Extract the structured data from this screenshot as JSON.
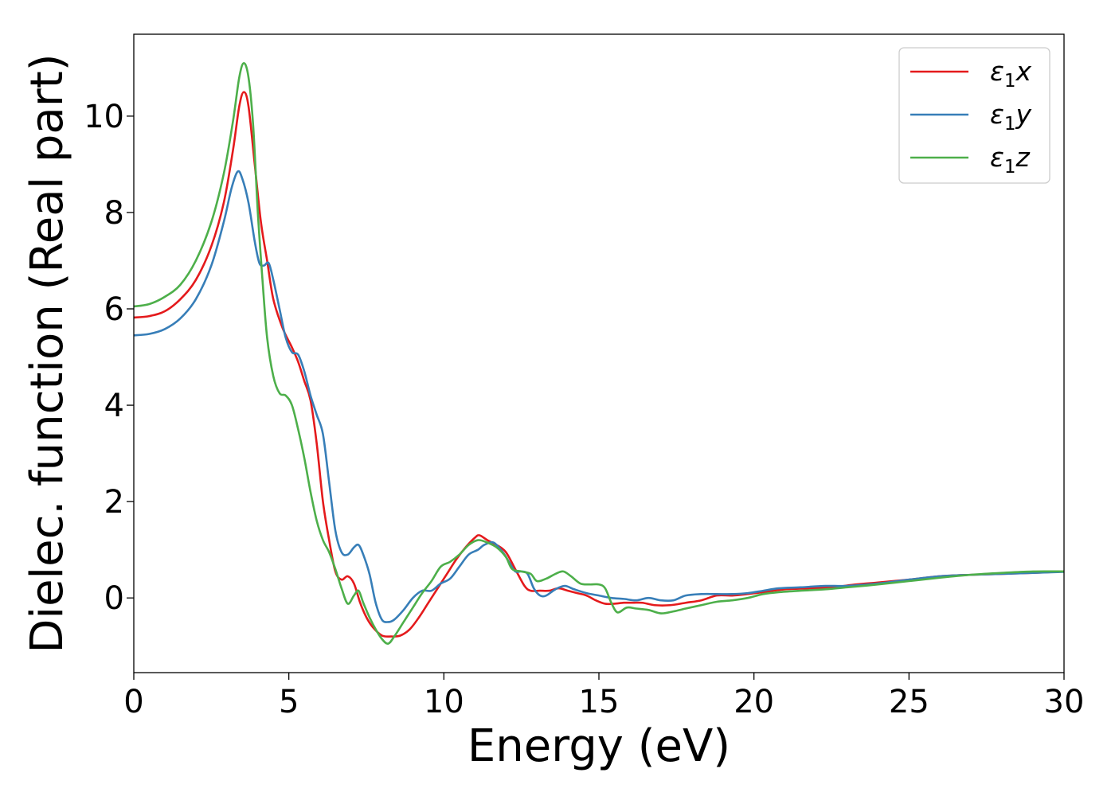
{
  "chart_data": {
    "type": "line",
    "xlabel": "Energy (eV)",
    "ylabel": "Dielec. function (Real part)",
    "xlim": [
      0,
      30
    ],
    "ylim": [
      -1.55,
      11.7
    ],
    "xticks": [
      0,
      5,
      10,
      15,
      20,
      25,
      30
    ],
    "yticks": [
      0,
      2,
      4,
      6,
      8,
      10
    ],
    "grid": false,
    "legend_position": "top-right",
    "series": [
      {
        "name": "ε₁x",
        "legend_base": "ε",
        "legend_sub": "1",
        "legend_suffix": "x",
        "color": "#e41a1c",
        "points": [
          [
            0,
            5.82
          ],
          [
            0.5,
            5.85
          ],
          [
            1.0,
            5.95
          ],
          [
            1.5,
            6.2
          ],
          [
            2.0,
            6.6
          ],
          [
            2.5,
            7.3
          ],
          [
            2.9,
            8.2
          ],
          [
            3.2,
            9.3
          ],
          [
            3.4,
            10.2
          ],
          [
            3.55,
            10.5
          ],
          [
            3.7,
            10.2
          ],
          [
            3.9,
            9.0
          ],
          [
            4.1,
            7.8
          ],
          [
            4.3,
            7.0
          ],
          [
            4.5,
            6.2
          ],
          [
            4.8,
            5.6
          ],
          [
            5.1,
            5.2
          ],
          [
            5.3,
            4.9
          ],
          [
            5.5,
            4.5
          ],
          [
            5.7,
            4.1
          ],
          [
            5.9,
            3.2
          ],
          [
            6.1,
            2.0
          ],
          [
            6.3,
            1.2
          ],
          [
            6.5,
            0.55
          ],
          [
            6.7,
            0.38
          ],
          [
            6.9,
            0.45
          ],
          [
            7.1,
            0.3
          ],
          [
            7.3,
            -0.1
          ],
          [
            7.5,
            -0.4
          ],
          [
            7.7,
            -0.6
          ],
          [
            8.0,
            -0.78
          ],
          [
            8.3,
            -0.8
          ],
          [
            8.6,
            -0.78
          ],
          [
            8.9,
            -0.65
          ],
          [
            9.2,
            -0.4
          ],
          [
            9.5,
            -0.1
          ],
          [
            9.8,
            0.2
          ],
          [
            10.1,
            0.5
          ],
          [
            10.4,
            0.8
          ],
          [
            10.7,
            1.05
          ],
          [
            11.0,
            1.25
          ],
          [
            11.15,
            1.3
          ],
          [
            11.4,
            1.2
          ],
          [
            11.7,
            1.1
          ],
          [
            12.0,
            0.95
          ],
          [
            12.3,
            0.6
          ],
          [
            12.6,
            0.25
          ],
          [
            12.8,
            0.15
          ],
          [
            13.1,
            0.15
          ],
          [
            13.4,
            0.15
          ],
          [
            13.7,
            0.2
          ],
          [
            14.0,
            0.15
          ],
          [
            14.3,
            0.1
          ],
          [
            14.6,
            0.05
          ],
          [
            14.9,
            -0.05
          ],
          [
            15.2,
            -0.12
          ],
          [
            15.5,
            -0.12
          ],
          [
            15.8,
            -0.1
          ],
          [
            16.1,
            -0.1
          ],
          [
            16.4,
            -0.1
          ],
          [
            16.8,
            -0.15
          ],
          [
            17.3,
            -0.15
          ],
          [
            17.8,
            -0.1
          ],
          [
            18.3,
            -0.05
          ],
          [
            18.8,
            0.05
          ],
          [
            19.3,
            0.05
          ],
          [
            19.8,
            0.08
          ],
          [
            20.3,
            0.12
          ],
          [
            21.0,
            0.18
          ],
          [
            21.8,
            0.2
          ],
          [
            22.5,
            0.22
          ],
          [
            23.3,
            0.28
          ],
          [
            24.0,
            0.32
          ],
          [
            25.0,
            0.38
          ],
          [
            26.0,
            0.45
          ],
          [
            27.0,
            0.48
          ],
          [
            28.0,
            0.5
          ],
          [
            29.0,
            0.52
          ],
          [
            30.0,
            0.55
          ]
        ]
      },
      {
        "name": "ε₁y",
        "legend_base": "ε",
        "legend_sub": "1",
        "legend_suffix": "y",
        "color": "#377eb8",
        "points": [
          [
            0,
            5.45
          ],
          [
            0.5,
            5.48
          ],
          [
            1.0,
            5.58
          ],
          [
            1.5,
            5.8
          ],
          [
            2.0,
            6.2
          ],
          [
            2.5,
            6.9
          ],
          [
            2.9,
            7.8
          ],
          [
            3.15,
            8.5
          ],
          [
            3.35,
            8.85
          ],
          [
            3.5,
            8.7
          ],
          [
            3.7,
            8.2
          ],
          [
            3.9,
            7.4
          ],
          [
            4.05,
            6.95
          ],
          [
            4.2,
            6.9
          ],
          [
            4.35,
            6.95
          ],
          [
            4.5,
            6.6
          ],
          [
            4.7,
            6.0
          ],
          [
            4.9,
            5.4
          ],
          [
            5.1,
            5.1
          ],
          [
            5.3,
            5.05
          ],
          [
            5.5,
            4.7
          ],
          [
            5.7,
            4.2
          ],
          [
            5.9,
            3.8
          ],
          [
            6.1,
            3.4
          ],
          [
            6.3,
            2.4
          ],
          [
            6.5,
            1.4
          ],
          [
            6.7,
            0.95
          ],
          [
            6.9,
            0.9
          ],
          [
            7.1,
            1.05
          ],
          [
            7.25,
            1.1
          ],
          [
            7.4,
            0.9
          ],
          [
            7.6,
            0.5
          ],
          [
            7.8,
            -0.1
          ],
          [
            8.0,
            -0.45
          ],
          [
            8.2,
            -0.5
          ],
          [
            8.4,
            -0.45
          ],
          [
            8.7,
            -0.25
          ],
          [
            9.0,
            0.0
          ],
          [
            9.3,
            0.15
          ],
          [
            9.6,
            0.15
          ],
          [
            9.9,
            0.3
          ],
          [
            10.2,
            0.4
          ],
          [
            10.5,
            0.65
          ],
          [
            10.8,
            0.9
          ],
          [
            11.1,
            1.0
          ],
          [
            11.3,
            1.1
          ],
          [
            11.6,
            1.15
          ],
          [
            11.9,
            0.95
          ],
          [
            12.1,
            0.75
          ],
          [
            12.3,
            0.55
          ],
          [
            12.5,
            0.55
          ],
          [
            12.7,
            0.5
          ],
          [
            12.9,
            0.2
          ],
          [
            13.1,
            0.05
          ],
          [
            13.3,
            0.05
          ],
          [
            13.6,
            0.18
          ],
          [
            13.9,
            0.25
          ],
          [
            14.2,
            0.18
          ],
          [
            14.6,
            0.1
          ],
          [
            15.0,
            0.05
          ],
          [
            15.4,
            0.0
          ],
          [
            15.8,
            -0.02
          ],
          [
            16.2,
            -0.05
          ],
          [
            16.6,
            0.0
          ],
          [
            17.0,
            -0.05
          ],
          [
            17.4,
            -0.05
          ],
          [
            17.8,
            0.05
          ],
          [
            18.3,
            0.08
          ],
          [
            18.8,
            0.08
          ],
          [
            19.3,
            0.08
          ],
          [
            19.8,
            0.1
          ],
          [
            20.3,
            0.15
          ],
          [
            20.8,
            0.2
          ],
          [
            21.5,
            0.22
          ],
          [
            22.3,
            0.25
          ],
          [
            23.0,
            0.25
          ],
          [
            24.0,
            0.3
          ],
          [
            25.0,
            0.38
          ],
          [
            26.0,
            0.45
          ],
          [
            27.0,
            0.48
          ],
          [
            28.0,
            0.5
          ],
          [
            29.0,
            0.52
          ],
          [
            30.0,
            0.54
          ]
        ]
      },
      {
        "name": "ε₁z",
        "legend_base": "ε",
        "legend_sub": "1",
        "legend_suffix": "z",
        "color": "#4daf4a",
        "points": [
          [
            0,
            6.05
          ],
          [
            0.5,
            6.1
          ],
          [
            1.0,
            6.25
          ],
          [
            1.5,
            6.5
          ],
          [
            2.0,
            7.0
          ],
          [
            2.5,
            7.8
          ],
          [
            2.9,
            8.8
          ],
          [
            3.2,
            9.9
          ],
          [
            3.4,
            10.8
          ],
          [
            3.55,
            11.1
          ],
          [
            3.7,
            10.8
          ],
          [
            3.85,
            9.8
          ],
          [
            4.0,
            8.0
          ],
          [
            4.15,
            6.6
          ],
          [
            4.3,
            5.4
          ],
          [
            4.5,
            4.6
          ],
          [
            4.7,
            4.25
          ],
          [
            4.9,
            4.2
          ],
          [
            5.1,
            4.0
          ],
          [
            5.3,
            3.5
          ],
          [
            5.5,
            2.9
          ],
          [
            5.7,
            2.2
          ],
          [
            5.9,
            1.6
          ],
          [
            6.1,
            1.2
          ],
          [
            6.3,
            0.95
          ],
          [
            6.5,
            0.6
          ],
          [
            6.7,
            0.2
          ],
          [
            6.9,
            -0.12
          ],
          [
            7.1,
            0.05
          ],
          [
            7.25,
            0.15
          ],
          [
            7.4,
            -0.1
          ],
          [
            7.6,
            -0.4
          ],
          [
            7.8,
            -0.65
          ],
          [
            8.0,
            -0.85
          ],
          [
            8.2,
            -0.95
          ],
          [
            8.4,
            -0.8
          ],
          [
            8.7,
            -0.5
          ],
          [
            9.0,
            -0.2
          ],
          [
            9.3,
            0.1
          ],
          [
            9.6,
            0.35
          ],
          [
            9.9,
            0.65
          ],
          [
            10.2,
            0.75
          ],
          [
            10.5,
            0.9
          ],
          [
            10.8,
            1.1
          ],
          [
            11.1,
            1.2
          ],
          [
            11.4,
            1.15
          ],
          [
            11.7,
            1.05
          ],
          [
            12.0,
            0.85
          ],
          [
            12.2,
            0.6
          ],
          [
            12.5,
            0.55
          ],
          [
            12.8,
            0.5
          ],
          [
            13.0,
            0.35
          ],
          [
            13.3,
            0.4
          ],
          [
            13.6,
            0.5
          ],
          [
            13.85,
            0.55
          ],
          [
            14.1,
            0.45
          ],
          [
            14.4,
            0.3
          ],
          [
            14.7,
            0.28
          ],
          [
            15.0,
            0.28
          ],
          [
            15.2,
            0.2
          ],
          [
            15.4,
            -0.1
          ],
          [
            15.6,
            -0.3
          ],
          [
            15.9,
            -0.2
          ],
          [
            16.2,
            -0.22
          ],
          [
            16.6,
            -0.25
          ],
          [
            17.0,
            -0.32
          ],
          [
            17.4,
            -0.28
          ],
          [
            17.8,
            -0.22
          ],
          [
            18.3,
            -0.15
          ],
          [
            18.8,
            -0.08
          ],
          [
            19.3,
            -0.05
          ],
          [
            19.8,
            0.0
          ],
          [
            20.3,
            0.08
          ],
          [
            20.8,
            0.12
          ],
          [
            21.5,
            0.15
          ],
          [
            22.3,
            0.18
          ],
          [
            23.0,
            0.22
          ],
          [
            24.0,
            0.28
          ],
          [
            25.0,
            0.35
          ],
          [
            26.0,
            0.42
          ],
          [
            27.0,
            0.48
          ],
          [
            28.0,
            0.52
          ],
          [
            29.0,
            0.55
          ],
          [
            30.0,
            0.55
          ]
        ]
      }
    ]
  }
}
